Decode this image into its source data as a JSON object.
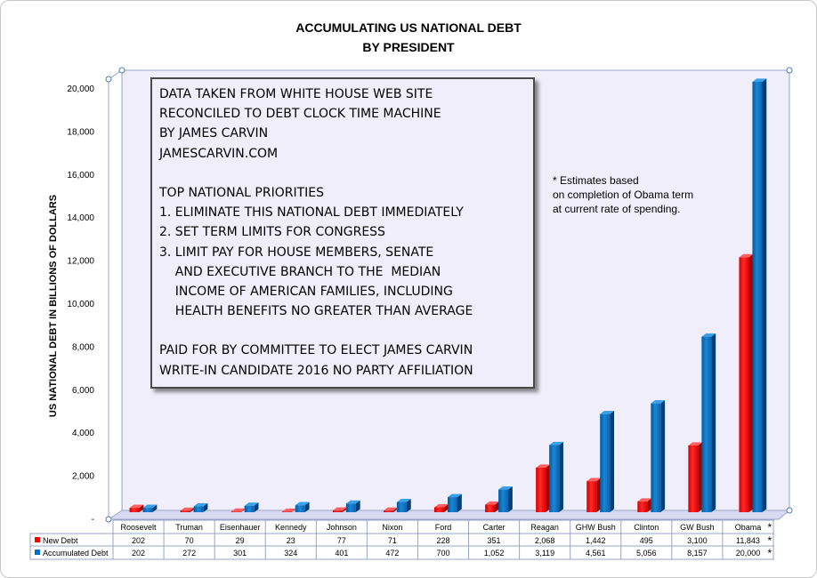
{
  "chart_data": {
    "type": "bar",
    "title": [
      "ACCUMULATING US NATIONAL DEBT",
      "BY PRESIDENT"
    ],
    "ylabel": "US NATIONAL DEBT IN BILLIONS OF DOLLARS",
    "ylim": [
      0,
      20000
    ],
    "yticks": [
      "-",
      "2,000",
      "4,000",
      "6,000",
      "8,000",
      "10,000",
      "12,000",
      "14,000",
      "16,000",
      "18,000",
      "20,000"
    ],
    "categories": [
      "Roosevelt",
      "Truman",
      "Eisenhauer",
      "Kennedy",
      "Johnson",
      "Nixon",
      "Ford",
      "Carter",
      "Reagan",
      "GHW Bush",
      "Clinton",
      "GW Bush",
      "Obama"
    ],
    "series": [
      {
        "name": "New Debt",
        "color": "#ff0000",
        "values": [
          202,
          70,
          29,
          23,
          77,
          71,
          228,
          351,
          2068,
          1442,
          495,
          3100,
          11843
        ],
        "labels": [
          "202",
          "70",
          "29",
          "23",
          "77",
          "71",
          "228",
          "351",
          "2,068",
          "1,442",
          "495",
          "3,100",
          "11,843"
        ]
      },
      {
        "name": "Accumulated Debt",
        "color": "#0070c0",
        "values": [
          202,
          272,
          301,
          324,
          401,
          472,
          700,
          1052,
          3119,
          4561,
          5056,
          8157,
          20000
        ],
        "labels": [
          "202",
          "272",
          "301",
          "324",
          "401",
          "472",
          "700",
          "1,052",
          "3,119",
          "4,561",
          "5,056",
          "8,157",
          "20,000"
        ]
      }
    ],
    "asterisk": "*",
    "grid": false,
    "legend": "data-table"
  },
  "infobox": {
    "lines": [
      "DATA TAKEN FROM WHITE HOUSE WEB SITE",
      "RECONCILED TO DEBT CLOCK TIME MACHINE",
      "BY JAMES CARVIN",
      "JAMESCARVIN.COM",
      "",
      "TOP NATIONAL PRIORITIES",
      "1. ELIMINATE THIS NATIONAL DEBT IMMEDIATELY",
      "2. SET TERM LIMITS FOR CONGRESS",
      "3. LIMIT PAY FOR HOUSE MEMBERS, SENATE",
      "    AND EXECUTIVE BRANCH TO THE  MEDIAN",
      "    INCOME OF AMERICAN FAMILIES, INCLUDING",
      "    HEALTH BENEFITS NO GREATER THAN AVERAGE",
      "",
      "PAID FOR BY COMMITTEE TO ELECT JAMES CARVIN",
      "WRITE-IN CANDIDATE 2016 NO PARTY AFFILIATION"
    ]
  },
  "note": {
    "lines": [
      "* Estimates based",
      "   on completion of Obama term",
      "   at current rate of spending."
    ]
  }
}
